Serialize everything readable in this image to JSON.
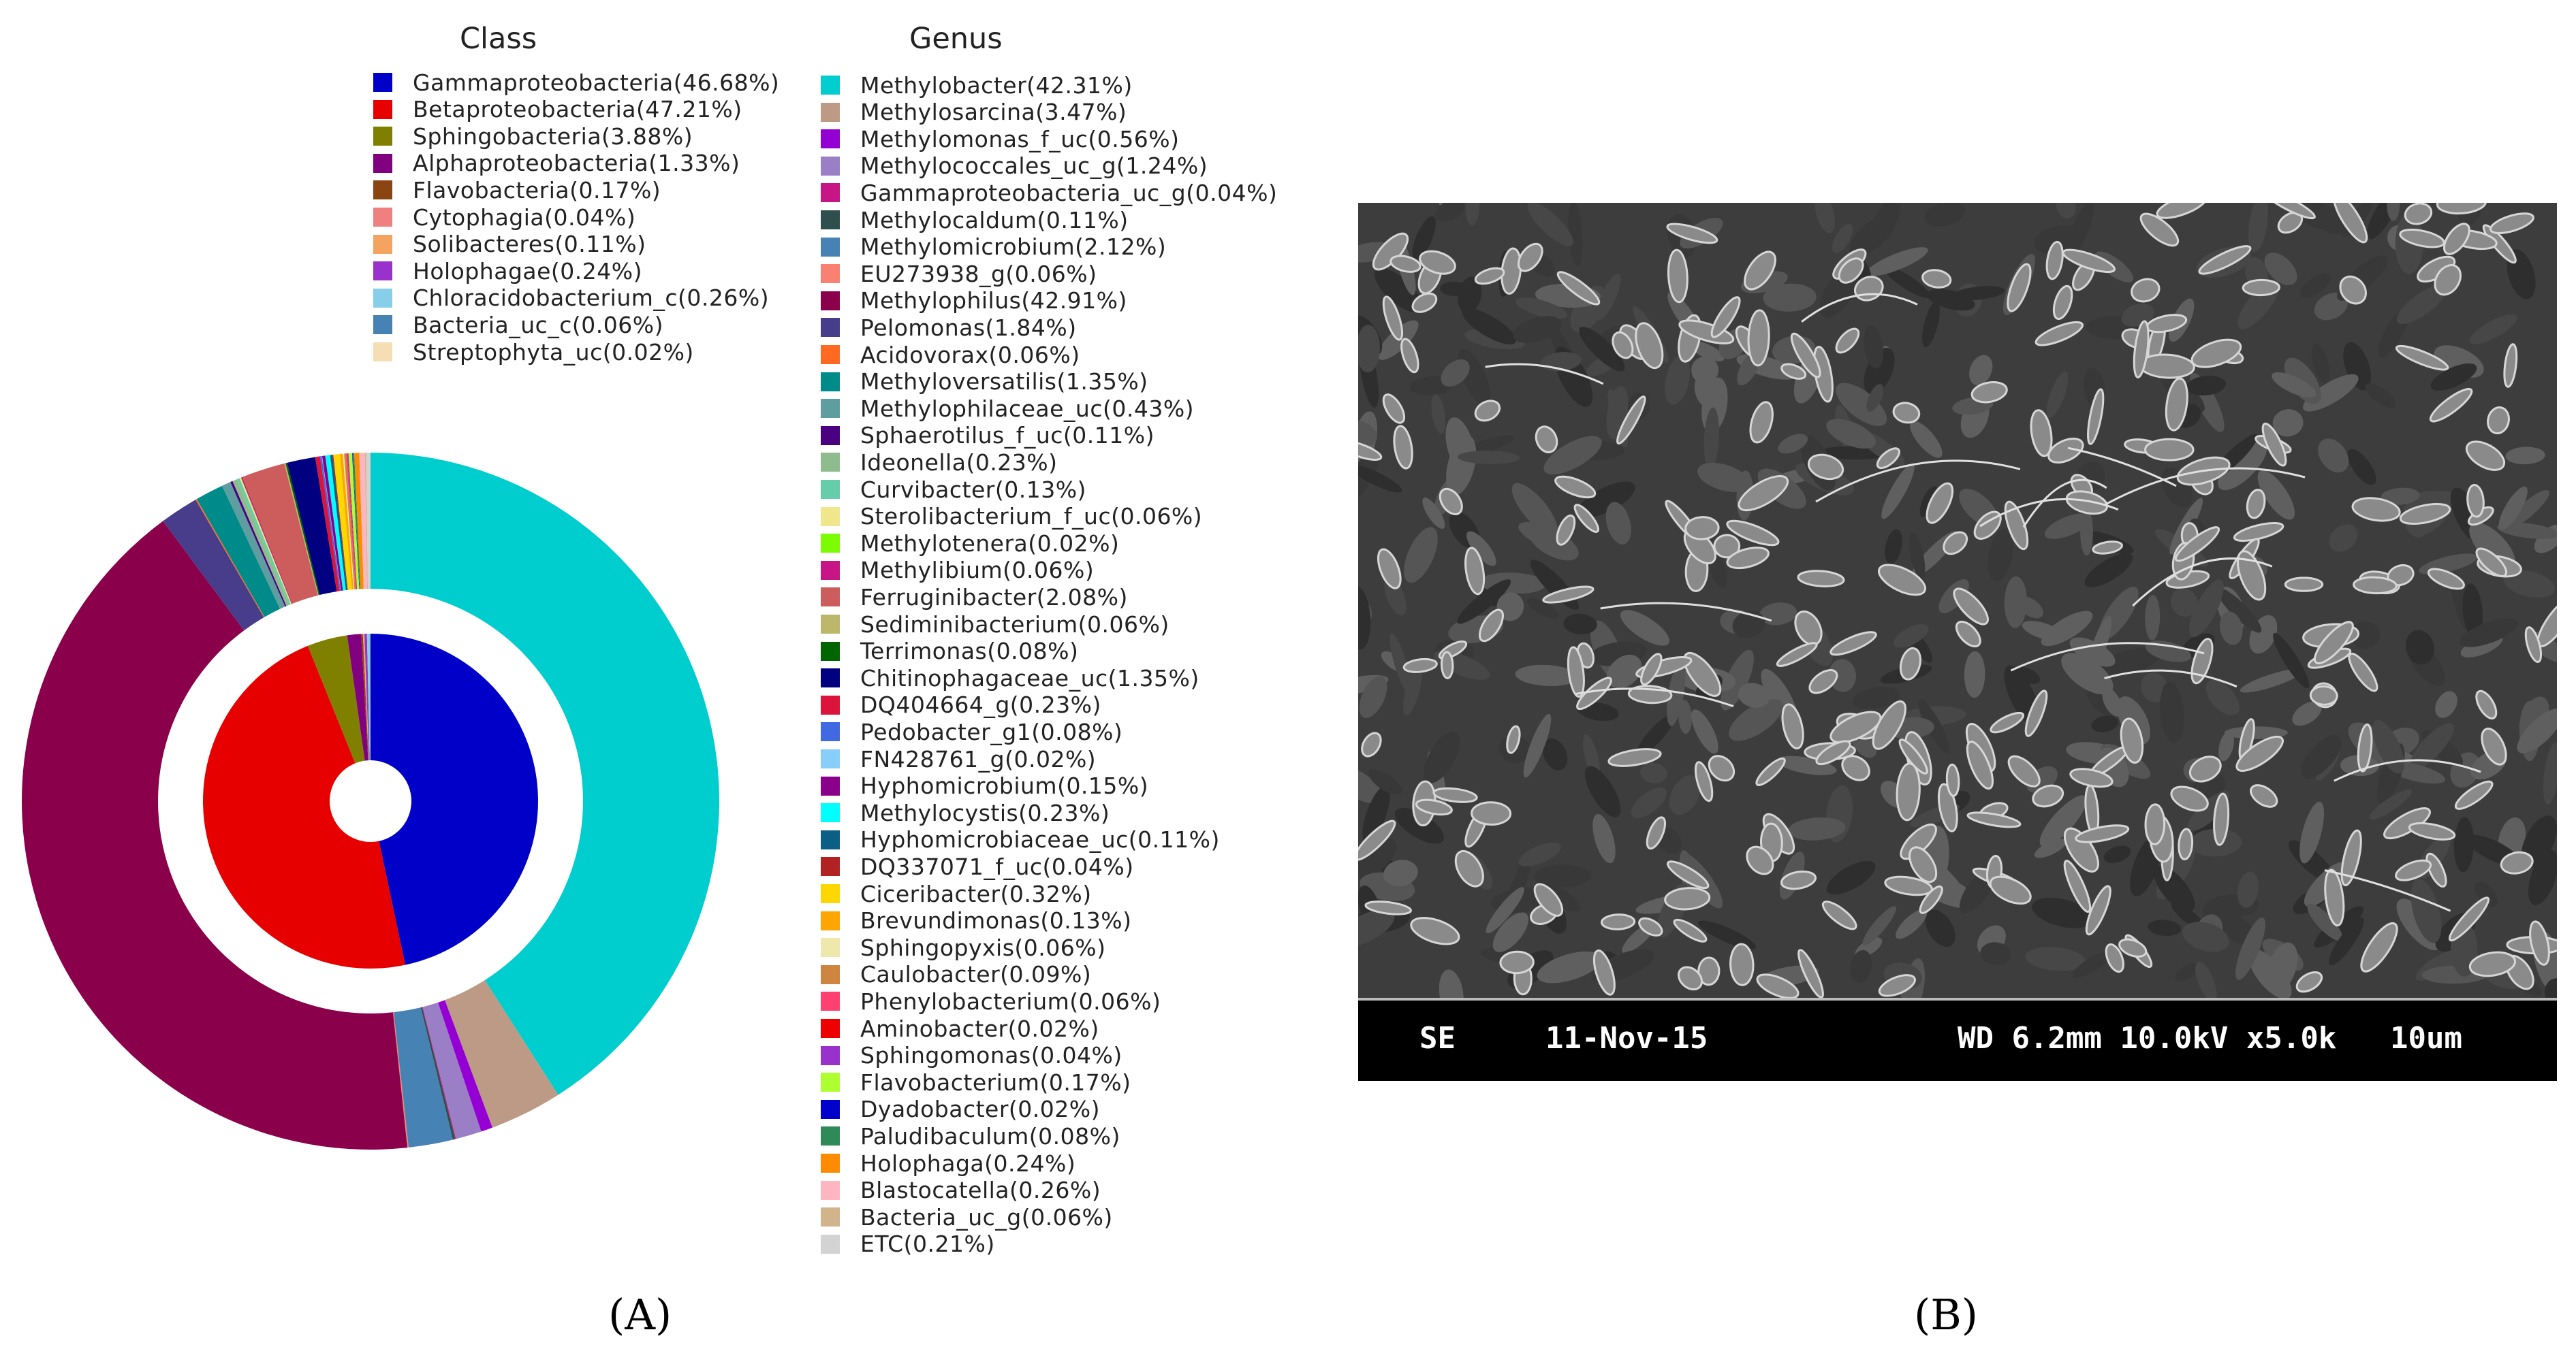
{
  "panel_a_label": "(A)",
  "panel_b_label": "(B)",
  "sem": {
    "mode": "SE",
    "date": "11-Nov-15",
    "settings": "WD 6.2mm 10.0kV x5.0k",
    "scale": "10um"
  },
  "chart_data": {
    "type": "pie",
    "variant": "nested-donut",
    "inner_ring_title": "Class",
    "outer_ring_title": "Genus",
    "class_series": [
      {
        "label": "Gammaproteobacteria(46.68%)",
        "value": 46.68,
        "color": "#0000c8"
      },
      {
        "label": "Betaproteobacteria(47.21%)",
        "value": 47.21,
        "color": "#e60000"
      },
      {
        "label": "Sphingobacteria(3.88%)",
        "value": 3.88,
        "color": "#808000"
      },
      {
        "label": "Alphaproteobacteria(1.33%)",
        "value": 1.33,
        "color": "#800080"
      },
      {
        "label": "Flavobacteria(0.17%)",
        "value": 0.17,
        "color": "#8b4513"
      },
      {
        "label": "Cytophagia(0.04%)",
        "value": 0.04,
        "color": "#f08080"
      },
      {
        "label": "Solibacteres(0.11%)",
        "value": 0.11,
        "color": "#f4a460"
      },
      {
        "label": "Holophagae(0.24%)",
        "value": 0.24,
        "color": "#9932cc"
      },
      {
        "label": "Chloracidobacterium_c(0.26%)",
        "value": 0.26,
        "color": "#87ceeb"
      },
      {
        "label": "Bacteria_uc_c(0.06%)",
        "value": 0.06,
        "color": "#4682b4"
      },
      {
        "label": "Streptophyta_uc(0.02%)",
        "value": 0.02,
        "color": "#f5deb3"
      }
    ],
    "genus_series": [
      {
        "label": "Methylobacter(42.31%)",
        "value": 42.31,
        "color": "#00cdcd"
      },
      {
        "label": "Methylosarcina(3.47%)",
        "value": 3.47,
        "color": "#bc9a86"
      },
      {
        "label": "Methylomonas_f_uc(0.56%)",
        "value": 0.56,
        "color": "#9400d3"
      },
      {
        "label": "Methylococcales_uc_g(1.24%)",
        "value": 1.24,
        "color": "#9a7fc6"
      },
      {
        "label": "Gammaproteobacteria_uc_g(0.04%)",
        "value": 0.04,
        "color": "#c71585"
      },
      {
        "label": "Methylocaldum(0.11%)",
        "value": 0.11,
        "color": "#2f4f4f"
      },
      {
        "label": "Methylomicrobium(2.12%)",
        "value": 2.12,
        "color": "#4682b4"
      },
      {
        "label": "EU273938_g(0.06%)",
        "value": 0.06,
        "color": "#fa8072"
      },
      {
        "label": "Methylophilus(42.91%)",
        "value": 42.91,
        "color": "#8b004b"
      },
      {
        "label": "Pelomonas(1.84%)",
        "value": 1.84,
        "color": "#483d8b"
      },
      {
        "label": "Acidovorax(0.06%)",
        "value": 0.06,
        "color": "#ff6a20"
      },
      {
        "label": "Methyloversatilis(1.35%)",
        "value": 1.35,
        "color": "#008b8b"
      },
      {
        "label": "Methylophilaceae_uc(0.43%)",
        "value": 0.43,
        "color": "#5f9ea0"
      },
      {
        "label": "Sphaerotilus_f_uc(0.11%)",
        "value": 0.11,
        "color": "#4b0082"
      },
      {
        "label": "Ideonella(0.23%)",
        "value": 0.23,
        "color": "#8fbc8f"
      },
      {
        "label": "Curvibacter(0.13%)",
        "value": 0.13,
        "color": "#66cdaa"
      },
      {
        "label": "Sterolibacterium_f_uc(0.06%)",
        "value": 0.06,
        "color": "#f0e68c"
      },
      {
        "label": "Methylotenera(0.02%)",
        "value": 0.02,
        "color": "#7cfc00"
      },
      {
        "label": "Methylibium(0.06%)",
        "value": 0.06,
        "color": "#c71585"
      },
      {
        "label": "Ferruginibacter(2.08%)",
        "value": 2.08,
        "color": "#cd5c5c"
      },
      {
        "label": "Sediminibacterium(0.06%)",
        "value": 0.06,
        "color": "#bdb76b"
      },
      {
        "label": "Terrimonas(0.08%)",
        "value": 0.08,
        "color": "#006400"
      },
      {
        "label": "Chitinophagaceae_uc(1.35%)",
        "value": 1.35,
        "color": "#000080"
      },
      {
        "label": "DQ404664_g(0.23%)",
        "value": 0.23,
        "color": "#dc143c"
      },
      {
        "label": "Pedobacter_g1(0.08%)",
        "value": 0.08,
        "color": "#4169e1"
      },
      {
        "label": "FN428761_g(0.02%)",
        "value": 0.02,
        "color": "#87cefa"
      },
      {
        "label": "Hyphomicrobium(0.15%)",
        "value": 0.15,
        "color": "#8b008b"
      },
      {
        "label": "Methylocystis(0.23%)",
        "value": 0.23,
        "color": "#00ffff"
      },
      {
        "label": "Hyphomicrobiaceae_uc(0.11%)",
        "value": 0.11,
        "color": "#0b5f86"
      },
      {
        "label": "DQ337071_f_uc(0.04%)",
        "value": 0.04,
        "color": "#b22222"
      },
      {
        "label": "Ciceribacter(0.32%)",
        "value": 0.32,
        "color": "#ffd700"
      },
      {
        "label": "Brevundimonas(0.13%)",
        "value": 0.13,
        "color": "#ffa500"
      },
      {
        "label": "Sphingopyxis(0.06%)",
        "value": 0.06,
        "color": "#eee8aa"
      },
      {
        "label": "Caulobacter(0.09%)",
        "value": 0.09,
        "color": "#cd853f"
      },
      {
        "label": "Phenylobacterium(0.06%)",
        "value": 0.06,
        "color": "#ff4070"
      },
      {
        "label": "Aminobacter(0.02%)",
        "value": 0.02,
        "color": "#ee0000"
      },
      {
        "label": "Sphingomonas(0.04%)",
        "value": 0.04,
        "color": "#9932cc"
      },
      {
        "label": "Flavobacterium(0.17%)",
        "value": 0.17,
        "color": "#adff2f"
      },
      {
        "label": "Dyadobacter(0.02%)",
        "value": 0.02,
        "color": "#0000cd"
      },
      {
        "label": "Paludibaculum(0.08%)",
        "value": 0.08,
        "color": "#2e8b57"
      },
      {
        "label": "Holophaga(0.24%)",
        "value": 0.24,
        "color": "#ff8c00"
      },
      {
        "label": "Blastocatella(0.26%)",
        "value": 0.26,
        "color": "#ffb6c1"
      },
      {
        "label": "Bacteria_uc_g(0.06%)",
        "value": 0.06,
        "color": "#d2b48c"
      },
      {
        "label": "ETC(0.21%)",
        "value": 0.21,
        "color": "#d3d3d3"
      }
    ]
  }
}
